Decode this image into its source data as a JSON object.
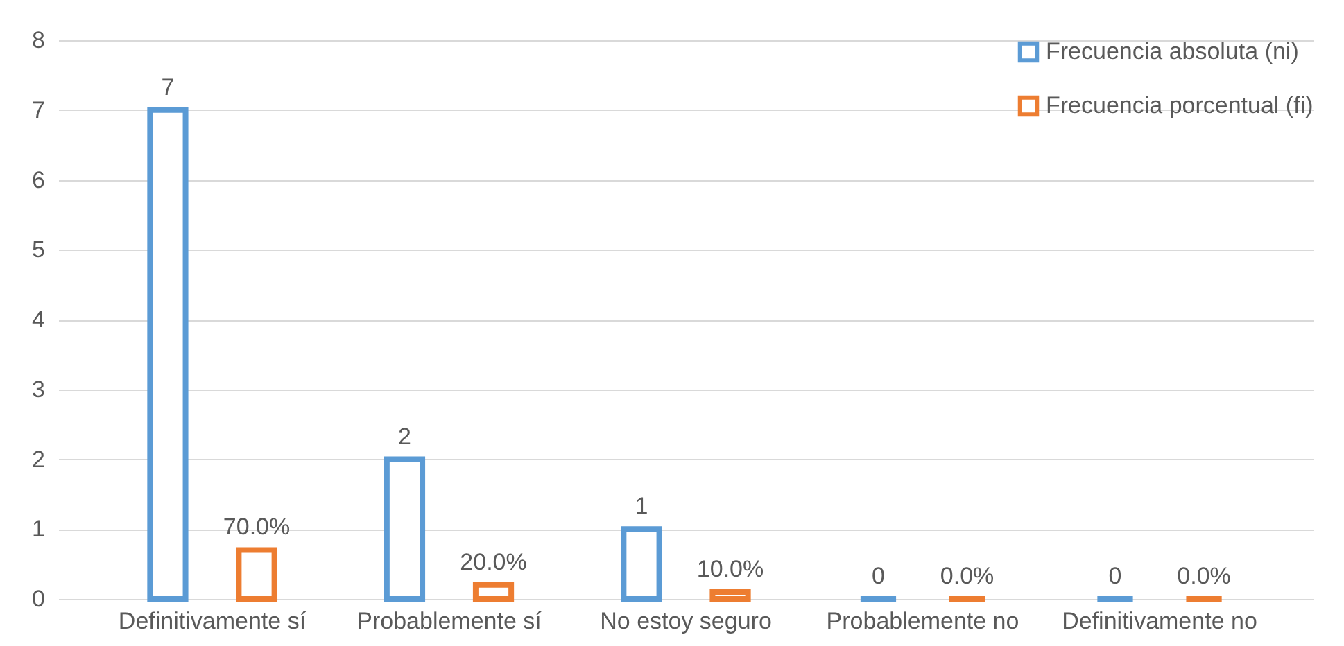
{
  "chart_data": {
    "type": "bar",
    "categories": [
      "Definitivamente sí",
      "Probablemente sí",
      "No estoy seguro",
      "Probablemente no",
      "Definitivamente no"
    ],
    "series": [
      {
        "name": "Frecuencia absoluta (ni)",
        "color": "#5b9bd5",
        "values": [
          7,
          2,
          1,
          0,
          0
        ],
        "value_labels": [
          "7",
          "2",
          "1",
          "0",
          "0"
        ]
      },
      {
        "name": "Frecuencia porcentual (fi)",
        "color": "#ed7d31",
        "values": [
          0.7,
          0.2,
          0.1,
          0,
          0
        ],
        "value_labels": [
          "70.0%",
          "20.0%",
          "10.0%",
          "0.0%",
          "0.0%"
        ]
      }
    ],
    "ylim": [
      0,
      8
    ],
    "yticks": [
      0,
      1,
      2,
      3,
      4,
      5,
      6,
      7,
      8
    ],
    "grid": "y",
    "legend": "top right"
  }
}
